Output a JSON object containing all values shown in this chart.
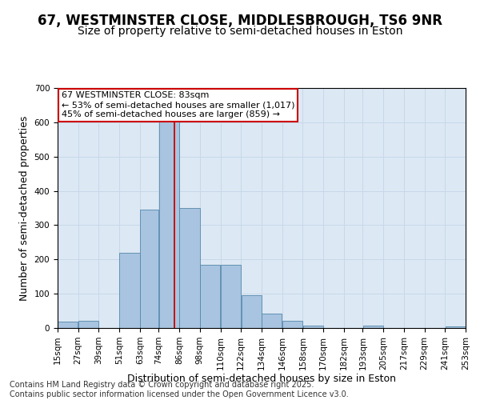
{
  "title_line1": "67, WESTMINSTER CLOSE, MIDDLESBROUGH, TS6 9NR",
  "title_line2": "Size of property relative to semi-detached houses in Eston",
  "xlabel": "Distribution of semi-detached houses by size in Eston",
  "ylabel": "Number of semi-detached properties",
  "annotation_line1": "67 WESTMINSTER CLOSE: 83sqm",
  "annotation_line2": "← 53% of semi-detached houses are smaller (1,017)",
  "annotation_line3": "45% of semi-detached houses are larger (859) →",
  "property_size": 83,
  "bar_left_edges": [
    15,
    27,
    39,
    51,
    63,
    74,
    86,
    98,
    110,
    122,
    134,
    146,
    158,
    170,
    182,
    193,
    205,
    217,
    229,
    241
  ],
  "bar_widths": [
    12,
    12,
    12,
    12,
    11,
    12,
    12,
    12,
    12,
    12,
    12,
    12,
    12,
    12,
    11,
    12,
    12,
    12,
    12,
    12
  ],
  "bar_heights": [
    18,
    22,
    0,
    220,
    345,
    615,
    350,
    185,
    185,
    95,
    42,
    22,
    8,
    0,
    0,
    8,
    0,
    0,
    0,
    5
  ],
  "bar_color": "#a8c4e0",
  "bar_edge_color": "#5588aa",
  "vline_color": "#cc0000",
  "vline_x": 83,
  "grid_color": "#c8d8e8",
  "bg_color": "#dce8f4",
  "box_color": "#cc0000",
  "ylim": [
    0,
    700
  ],
  "yticks": [
    0,
    100,
    200,
    300,
    400,
    500,
    600,
    700
  ],
  "tick_labels": [
    "15sqm",
    "27sqm",
    "39sqm",
    "51sqm",
    "63sqm",
    "74sqm",
    "86sqm",
    "98sqm",
    "110sqm",
    "122sqm",
    "134sqm",
    "146sqm",
    "158sqm",
    "170sqm",
    "182sqm",
    "193sqm",
    "205sqm",
    "217sqm",
    "229sqm",
    "241sqm",
    "253sqm"
  ],
  "footer_line1": "Contains HM Land Registry data © Crown copyright and database right 2025.",
  "footer_line2": "Contains public sector information licensed under the Open Government Licence v3.0.",
  "title_fontsize": 12,
  "subtitle_fontsize": 10,
  "axis_label_fontsize": 9,
  "tick_fontsize": 7.5,
  "annotation_fontsize": 8,
  "footer_fontsize": 7
}
